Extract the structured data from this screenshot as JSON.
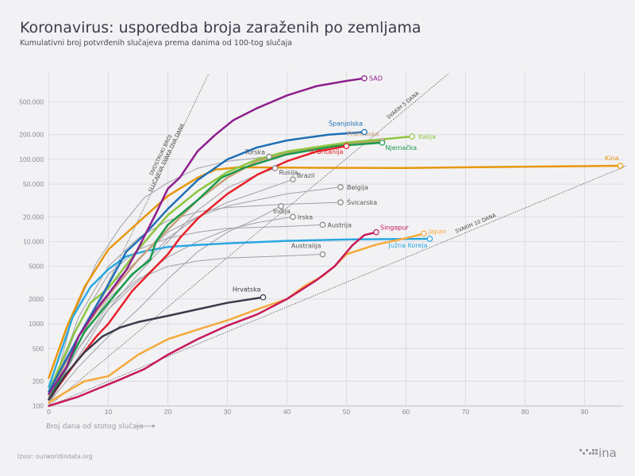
{
  "title": "Koronavirus: usporedba broja zaraženih po zemljama",
  "subtitle": "Kumulativni broj potvrđenih slučajeva prema danima od 100-tog slučaja",
  "source": "Izvor: ourworldindata.org",
  "logo_text": "hina",
  "chart_data": {
    "type": "line",
    "title": "Koronavirus: usporedba broja zaraženih po zemljama",
    "xlabel": "Broj dana od stotog slučaja",
    "ylabel": "",
    "yscale": "log",
    "xlim": [
      0,
      97
    ],
    "ylim": [
      100,
      1100000
    ],
    "grid": true,
    "x_ticks": [
      0,
      10,
      20,
      30,
      40,
      50,
      60,
      70,
      80,
      90
    ],
    "y_ticks": [
      100,
      200,
      500,
      1000,
      2000,
      5000,
      10000,
      20000,
      50000,
      100000,
      200000,
      500000
    ],
    "y_tick_labels": [
      "100",
      "200",
      "500",
      "1000",
      "2000",
      "5000",
      "10.000",
      "20.000",
      "50.000",
      "100.000",
      "200.000",
      "500.000"
    ],
    "reference_lines": [
      {
        "label_lines": [
          "DVOSTRUKI BROJ",
          "SLUČAJEVA SVAKA DVA DANA"
        ],
        "doubling_days": 2
      },
      {
        "label_lines": [
          "SVAKIH 5 DANA"
        ],
        "doubling_days": 5
      },
      {
        "label_lines": [
          "SVAKIH 10 DANA"
        ],
        "doubling_days": 10
      }
    ],
    "series": [
      {
        "name": "Turska",
        "color": "#a0a0a6",
        "width": 1,
        "points": [
          [
            0,
            100
          ],
          [
            4,
            1200
          ],
          [
            8,
            5500
          ],
          [
            12,
            15000
          ],
          [
            16,
            34000
          ],
          [
            20,
            52000
          ],
          [
            25,
            78000
          ],
          [
            30,
            95000
          ],
          [
            37,
            108000
          ]
        ]
      },
      {
        "name": "Rusija",
        "color": "#a0a0a6",
        "width": 1,
        "points": [
          [
            0,
            110
          ],
          [
            5,
            400
          ],
          [
            10,
            1500
          ],
          [
            15,
            4000
          ],
          [
            20,
            10000
          ],
          [
            25,
            24000
          ],
          [
            30,
            45000
          ],
          [
            35,
            65000
          ],
          [
            38,
            78000
          ]
        ]
      },
      {
        "name": "Brazil",
        "color": "#a0a0a6",
        "width": 1,
        "points": [
          [
            0,
            120
          ],
          [
            5,
            600
          ],
          [
            10,
            2000
          ],
          [
            15,
            4500
          ],
          [
            20,
            11000
          ],
          [
            25,
            20000
          ],
          [
            30,
            30000
          ],
          [
            35,
            40000
          ],
          [
            41,
            57000
          ]
        ]
      },
      {
        "name": "Belgija",
        "color": "#a0a0a6",
        "width": 1,
        "points": [
          [
            0,
            150
          ],
          [
            5,
            600
          ],
          [
            10,
            2800
          ],
          [
            15,
            6000
          ],
          [
            20,
            13000
          ],
          [
            25,
            20000
          ],
          [
            30,
            27000
          ],
          [
            40,
            38000
          ],
          [
            49,
            46000
          ]
        ]
      },
      {
        "name": "Švicarska",
        "color": "#a0a0a6",
        "width": 1,
        "points": [
          [
            0,
            120
          ],
          [
            5,
            1200
          ],
          [
            10,
            5000
          ],
          [
            15,
            11000
          ],
          [
            20,
            18000
          ],
          [
            25,
            23000
          ],
          [
            30,
            26000
          ],
          [
            40,
            28500
          ],
          [
            49,
            30000
          ]
        ]
      },
      {
        "name": "Indija",
        "color": "#a0a0a6",
        "width": 1,
        "points": [
          [
            0,
            110
          ],
          [
            5,
            300
          ],
          [
            10,
            700
          ],
          [
            15,
            1500
          ],
          [
            20,
            3500
          ],
          [
            25,
            7500
          ],
          [
            30,
            13000
          ],
          [
            35,
            19000
          ],
          [
            39,
            27000
          ]
        ]
      },
      {
        "name": "Irska",
        "color": "#a0a0a6",
        "width": 1,
        "points": [
          [
            0,
            120
          ],
          [
            5,
            500
          ],
          [
            10,
            1500
          ],
          [
            15,
            3300
          ],
          [
            20,
            6500
          ],
          [
            25,
            10000
          ],
          [
            30,
            14000
          ],
          [
            35,
            17000
          ],
          [
            41,
            20000
          ]
        ]
      },
      {
        "name": "Austrija",
        "color": "#a0a0a6",
        "width": 1,
        "points": [
          [
            0,
            120
          ],
          [
            5,
            1000
          ],
          [
            10,
            4000
          ],
          [
            15,
            8000
          ],
          [
            20,
            11000
          ],
          [
            25,
            13000
          ],
          [
            30,
            14500
          ],
          [
            40,
            15300
          ],
          [
            46,
            16000
          ]
        ]
      },
      {
        "name": "Australija",
        "color": "#a0a0a6",
        "width": 1,
        "points": [
          [
            0,
            110
          ],
          [
            5,
            500
          ],
          [
            10,
            1700
          ],
          [
            15,
            3500
          ],
          [
            20,
            5000
          ],
          [
            25,
            5800
          ],
          [
            30,
            6300
          ],
          [
            40,
            6700
          ],
          [
            46,
            7000
          ]
        ]
      },
      {
        "name": "Kina",
        "color": "#e8960c",
        "width": 2.5,
        "points": [
          [
            0,
            220
          ],
          [
            3,
            900
          ],
          [
            6,
            2800
          ],
          [
            10,
            8000
          ],
          [
            15,
            17000
          ],
          [
            20,
            36000
          ],
          [
            25,
            60000
          ],
          [
            28,
            75000
          ],
          [
            32,
            80000
          ],
          [
            45,
            79000
          ],
          [
            60,
            78500
          ],
          [
            70,
            80000
          ],
          [
            80,
            81500
          ],
          [
            96,
            83500
          ]
        ]
      },
      {
        "name": "Južna Koreja",
        "color": "#2aa8e0",
        "width": 2.5,
        "points": [
          [
            0,
            170
          ],
          [
            2,
            450
          ],
          [
            4,
            1200
          ],
          [
            7,
            2800
          ],
          [
            10,
            4600
          ],
          [
            13,
            6600
          ],
          [
            16,
            7600
          ],
          [
            20,
            8600
          ],
          [
            25,
            9100
          ],
          [
            30,
            9500
          ],
          [
            40,
            10200
          ],
          [
            50,
            10600
          ],
          [
            64,
            10800
          ]
        ]
      },
      {
        "name": "Francuska",
        "color": "#c9a07a",
        "width": 2.5,
        "points": [
          [
            0,
            130
          ],
          [
            5,
            700
          ],
          [
            10,
            2200
          ],
          [
            15,
            6000
          ],
          [
            20,
            14000
          ],
          [
            25,
            32000
          ],
          [
            30,
            60000
          ],
          [
            35,
            95000
          ],
          [
            40,
            120000
          ],
          [
            48,
            150000
          ],
          [
            56,
            168000
          ]
        ]
      },
      {
        "name": "Njemačka",
        "color": "#1a9a4a",
        "width": 2.5,
        "points": [
          [
            0,
            120
          ],
          [
            3,
            300
          ],
          [
            6,
            800
          ],
          [
            10,
            1800
          ],
          [
            14,
            4000
          ],
          [
            17,
            6000
          ],
          [
            18,
            10000
          ],
          [
            20,
            16000
          ],
          [
            25,
            32000
          ],
          [
            29,
            60000
          ],
          [
            33,
            80000
          ],
          [
            40,
            115000
          ],
          [
            48,
            145000
          ],
          [
            56,
            160000
          ]
        ]
      },
      {
        "name": "Italija",
        "color": "#8cc63f",
        "width": 2.5,
        "points": [
          [
            0,
            150
          ],
          [
            4,
            700
          ],
          [
            7,
            1800
          ],
          [
            10,
            2700
          ],
          [
            15,
            8000
          ],
          [
            20,
            21000
          ],
          [
            25,
            41000
          ],
          [
            30,
            70000
          ],
          [
            35,
            100000
          ],
          [
            40,
            125000
          ],
          [
            50,
            160000
          ],
          [
            61,
            190000
          ]
        ]
      },
      {
        "name": "V. Britanija",
        "color": "#e8202a",
        "width": 2.5,
        "points": [
          [
            0,
            120
          ],
          [
            4,
            300
          ],
          [
            8,
            700
          ],
          [
            10,
            1000
          ],
          [
            14,
            2500
          ],
          [
            17,
            4200
          ],
          [
            20,
            7000
          ],
          [
            22,
            11000
          ],
          [
            25,
            19000
          ],
          [
            30,
            38000
          ],
          [
            35,
            65000
          ],
          [
            40,
            95000
          ],
          [
            45,
            125000
          ],
          [
            50,
            145000
          ]
        ]
      },
      {
        "name": "Španjolska",
        "color": "#1f6fb5",
        "width": 2.5,
        "points": [
          [
            0,
            150
          ],
          [
            5,
            700
          ],
          [
            10,
            3000
          ],
          [
            13,
            7500
          ],
          [
            16,
            12000
          ],
          [
            20,
            25000
          ],
          [
            25,
            56000
          ],
          [
            30,
            100000
          ],
          [
            35,
            140000
          ],
          [
            40,
            170000
          ],
          [
            47,
            200000
          ],
          [
            53,
            215000
          ]
        ]
      },
      {
        "name": "SAD",
        "color": "#8e1f8e",
        "width": 2.5,
        "points": [
          [
            0,
            140
          ],
          [
            3,
            300
          ],
          [
            5,
            700
          ],
          [
            8,
            1500
          ],
          [
            10,
            2300
          ],
          [
            13,
            4500
          ],
          [
            15,
            8200
          ],
          [
            18,
            22000
          ],
          [
            20,
            44000
          ],
          [
            22,
            60000
          ],
          [
            25,
            126000
          ],
          [
            28,
            200000
          ],
          [
            31,
            300000
          ],
          [
            35,
            420000
          ],
          [
            40,
            600000
          ],
          [
            45,
            780000
          ],
          [
            50,
            900000
          ],
          [
            53,
            970000
          ]
        ]
      },
      {
        "name": "Hrvatska",
        "color": "#3a3a4a",
        "width": 2.5,
        "points": [
          [
            0,
            120
          ],
          [
            3,
            250
          ],
          [
            6,
            450
          ],
          [
            9,
            700
          ],
          [
            12,
            900
          ],
          [
            15,
            1050
          ],
          [
            20,
            1250
          ],
          [
            25,
            1500
          ],
          [
            30,
            1800
          ],
          [
            36,
            2100
          ]
        ]
      },
      {
        "name": "Japan",
        "color": "#f5aa3c",
        "width": 2.5,
        "points": [
          [
            0,
            110
          ],
          [
            3,
            150
          ],
          [
            6,
            200
          ],
          [
            10,
            230
          ],
          [
            15,
            420
          ],
          [
            20,
            650
          ],
          [
            25,
            850
          ],
          [
            30,
            1100
          ],
          [
            35,
            1500
          ],
          [
            40,
            2000
          ],
          [
            43,
            2900
          ],
          [
            46,
            3800
          ],
          [
            48,
            5000
          ],
          [
            50,
            7000
          ],
          [
            55,
            9200
          ],
          [
            60,
            11000
          ],
          [
            63,
            12500
          ]
        ]
      },
      {
        "name": "Singapur",
        "color": "#c8195a",
        "width": 2.5,
        "points": [
          [
            0,
            100
          ],
          [
            5,
            130
          ],
          [
            8,
            160
          ],
          [
            12,
            210
          ],
          [
            16,
            280
          ],
          [
            20,
            420
          ],
          [
            25,
            650
          ],
          [
            30,
            950
          ],
          [
            35,
            1300
          ],
          [
            40,
            2000
          ],
          [
            45,
            3400
          ],
          [
            48,
            5000
          ],
          [
            51,
            9000
          ],
          [
            53,
            12000
          ],
          [
            55,
            13000
          ]
        ]
      }
    ]
  }
}
